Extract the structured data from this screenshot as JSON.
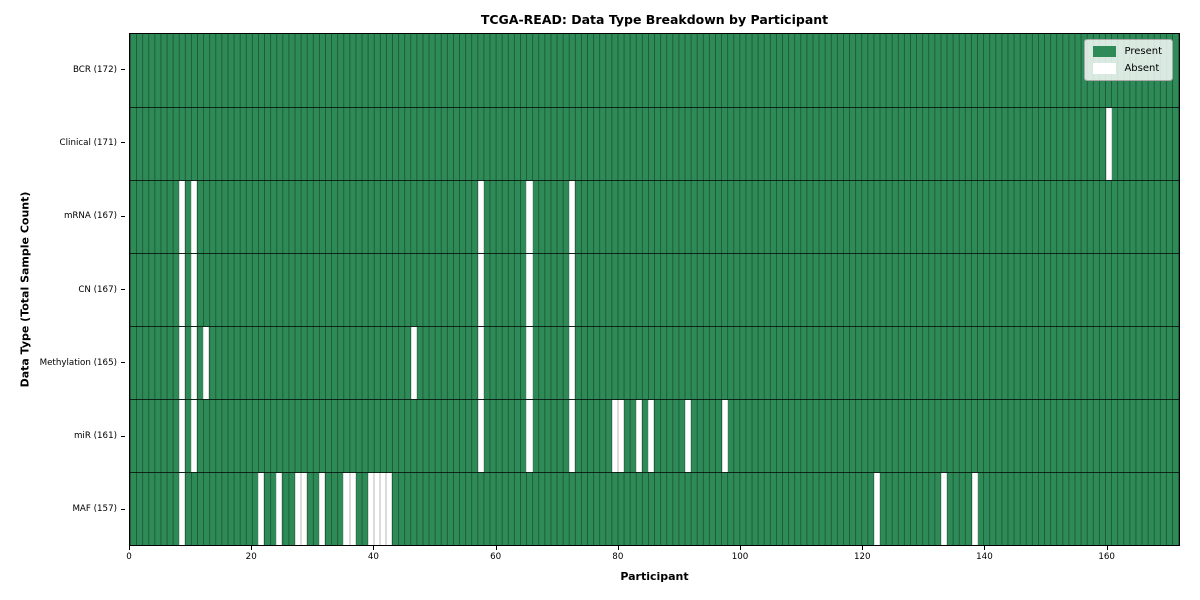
{
  "title": "TCGA-READ: Data Type Breakdown by Participant",
  "xlabel": "Participant",
  "ylabel": "Data Type (Total Sample Count)",
  "legend": {
    "present_label": "Present",
    "absent_label": "Absent"
  },
  "colors": {
    "present": "#2e8b57",
    "absent": "#ffffff",
    "cell_edge": "rgba(15,42,26,0.5)",
    "row_divider": "rgba(0,0,0,0.72)",
    "spine": "#000000"
  },
  "chart_data": {
    "type": "heatmap",
    "title": "TCGA-READ: Data Type Breakdown by Participant",
    "xlabel": "Participant",
    "ylabel": "Data Type (Total Sample Count)",
    "legend_entries": [
      "Present",
      "Absent"
    ],
    "legend_position": "upper right",
    "n_participants": 172,
    "xlim": [
      0,
      172
    ],
    "x_ticks": [
      0,
      20,
      40,
      60,
      80,
      100,
      120,
      140,
      160
    ],
    "rows": [
      {
        "name": "BCR",
        "label": "BCR (172)",
        "total_sample_count": 172,
        "absent_participants": []
      },
      {
        "name": "Clinical",
        "label": "Clinical (171)",
        "total_sample_count": 171,
        "absent_participants": [
          160
        ]
      },
      {
        "name": "mRNA",
        "label": "mRNA (167)",
        "total_sample_count": 167,
        "absent_participants": [
          8,
          10,
          57,
          65,
          72
        ]
      },
      {
        "name": "CN",
        "label": "CN (167)",
        "total_sample_count": 167,
        "absent_participants": [
          8,
          10,
          57,
          65,
          72
        ]
      },
      {
        "name": "Methylation",
        "label": "Methylation (165)",
        "total_sample_count": 165,
        "absent_participants": [
          8,
          10,
          12,
          46,
          57,
          65,
          72
        ]
      },
      {
        "name": "miR",
        "label": "miR (161)",
        "total_sample_count": 161,
        "absent_participants": [
          8,
          10,
          57,
          65,
          72,
          79,
          80,
          83,
          85,
          91,
          97
        ]
      },
      {
        "name": "MAF",
        "label": "MAF (157)",
        "total_sample_count": 157,
        "absent_participants": [
          8,
          21,
          24,
          27,
          28,
          31,
          35,
          36,
          39,
          40,
          41,
          42,
          122,
          133,
          138
        ]
      }
    ]
  }
}
